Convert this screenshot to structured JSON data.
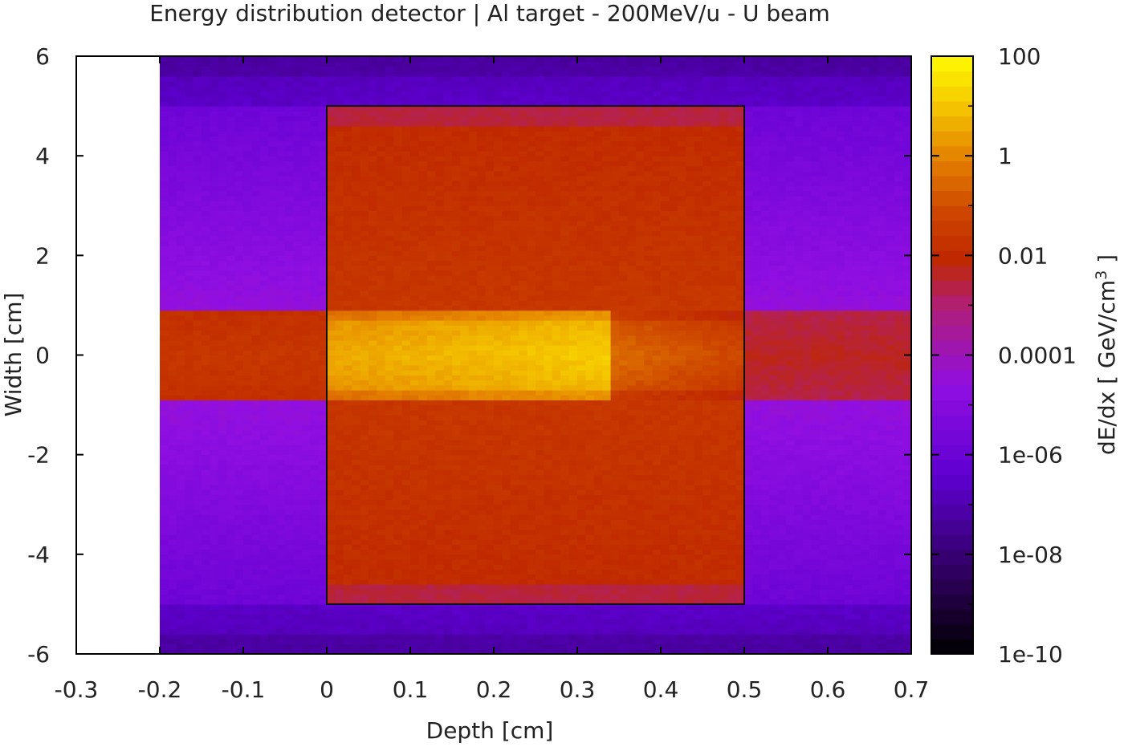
{
  "chart_data": {
    "type": "heatmap",
    "title": "Energy distribution detector | Al target - 200MeV/u - U beam",
    "xlabel": "Depth [cm]",
    "ylabel": "Width [cm]",
    "colorbar_label_main": "dE/dx [ GeV/cm",
    "colorbar_label_sup": "3",
    "colorbar_label_end": " ]",
    "xlim": [
      -0.3,
      0.7
    ],
    "ylim": [
      -6,
      6
    ],
    "x_ticks": [
      "-0.3",
      "-0.2",
      "-0.1",
      "0",
      "0.1",
      "0.2",
      "0.3",
      "0.4",
      "0.5",
      "0.6",
      "0.7"
    ],
    "y_ticks": [
      "-6",
      "-4",
      "-2",
      "0",
      "2",
      "4",
      "6"
    ],
    "colorbar_scale": "log",
    "colorbar_range": [
      1e-10,
      100
    ],
    "colorbar_ticks": [
      "1e-10",
      "1e-08",
      "1e-06",
      "0.0001",
      "0.01",
      "1",
      "100"
    ],
    "data_x_range": [
      -0.2,
      0.7
    ],
    "data_y_range": [
      -6,
      6
    ],
    "target_box": {
      "x": [
        0,
        0.5
      ],
      "y": [
        -5,
        5
      ]
    },
    "beam_core_half_width": 0.9,
    "bragg_peak_depth": 0.34,
    "palette": "gnuplot black-blue-violet-red-orange-yellow",
    "grid": false,
    "legend": "colorbar right"
  }
}
